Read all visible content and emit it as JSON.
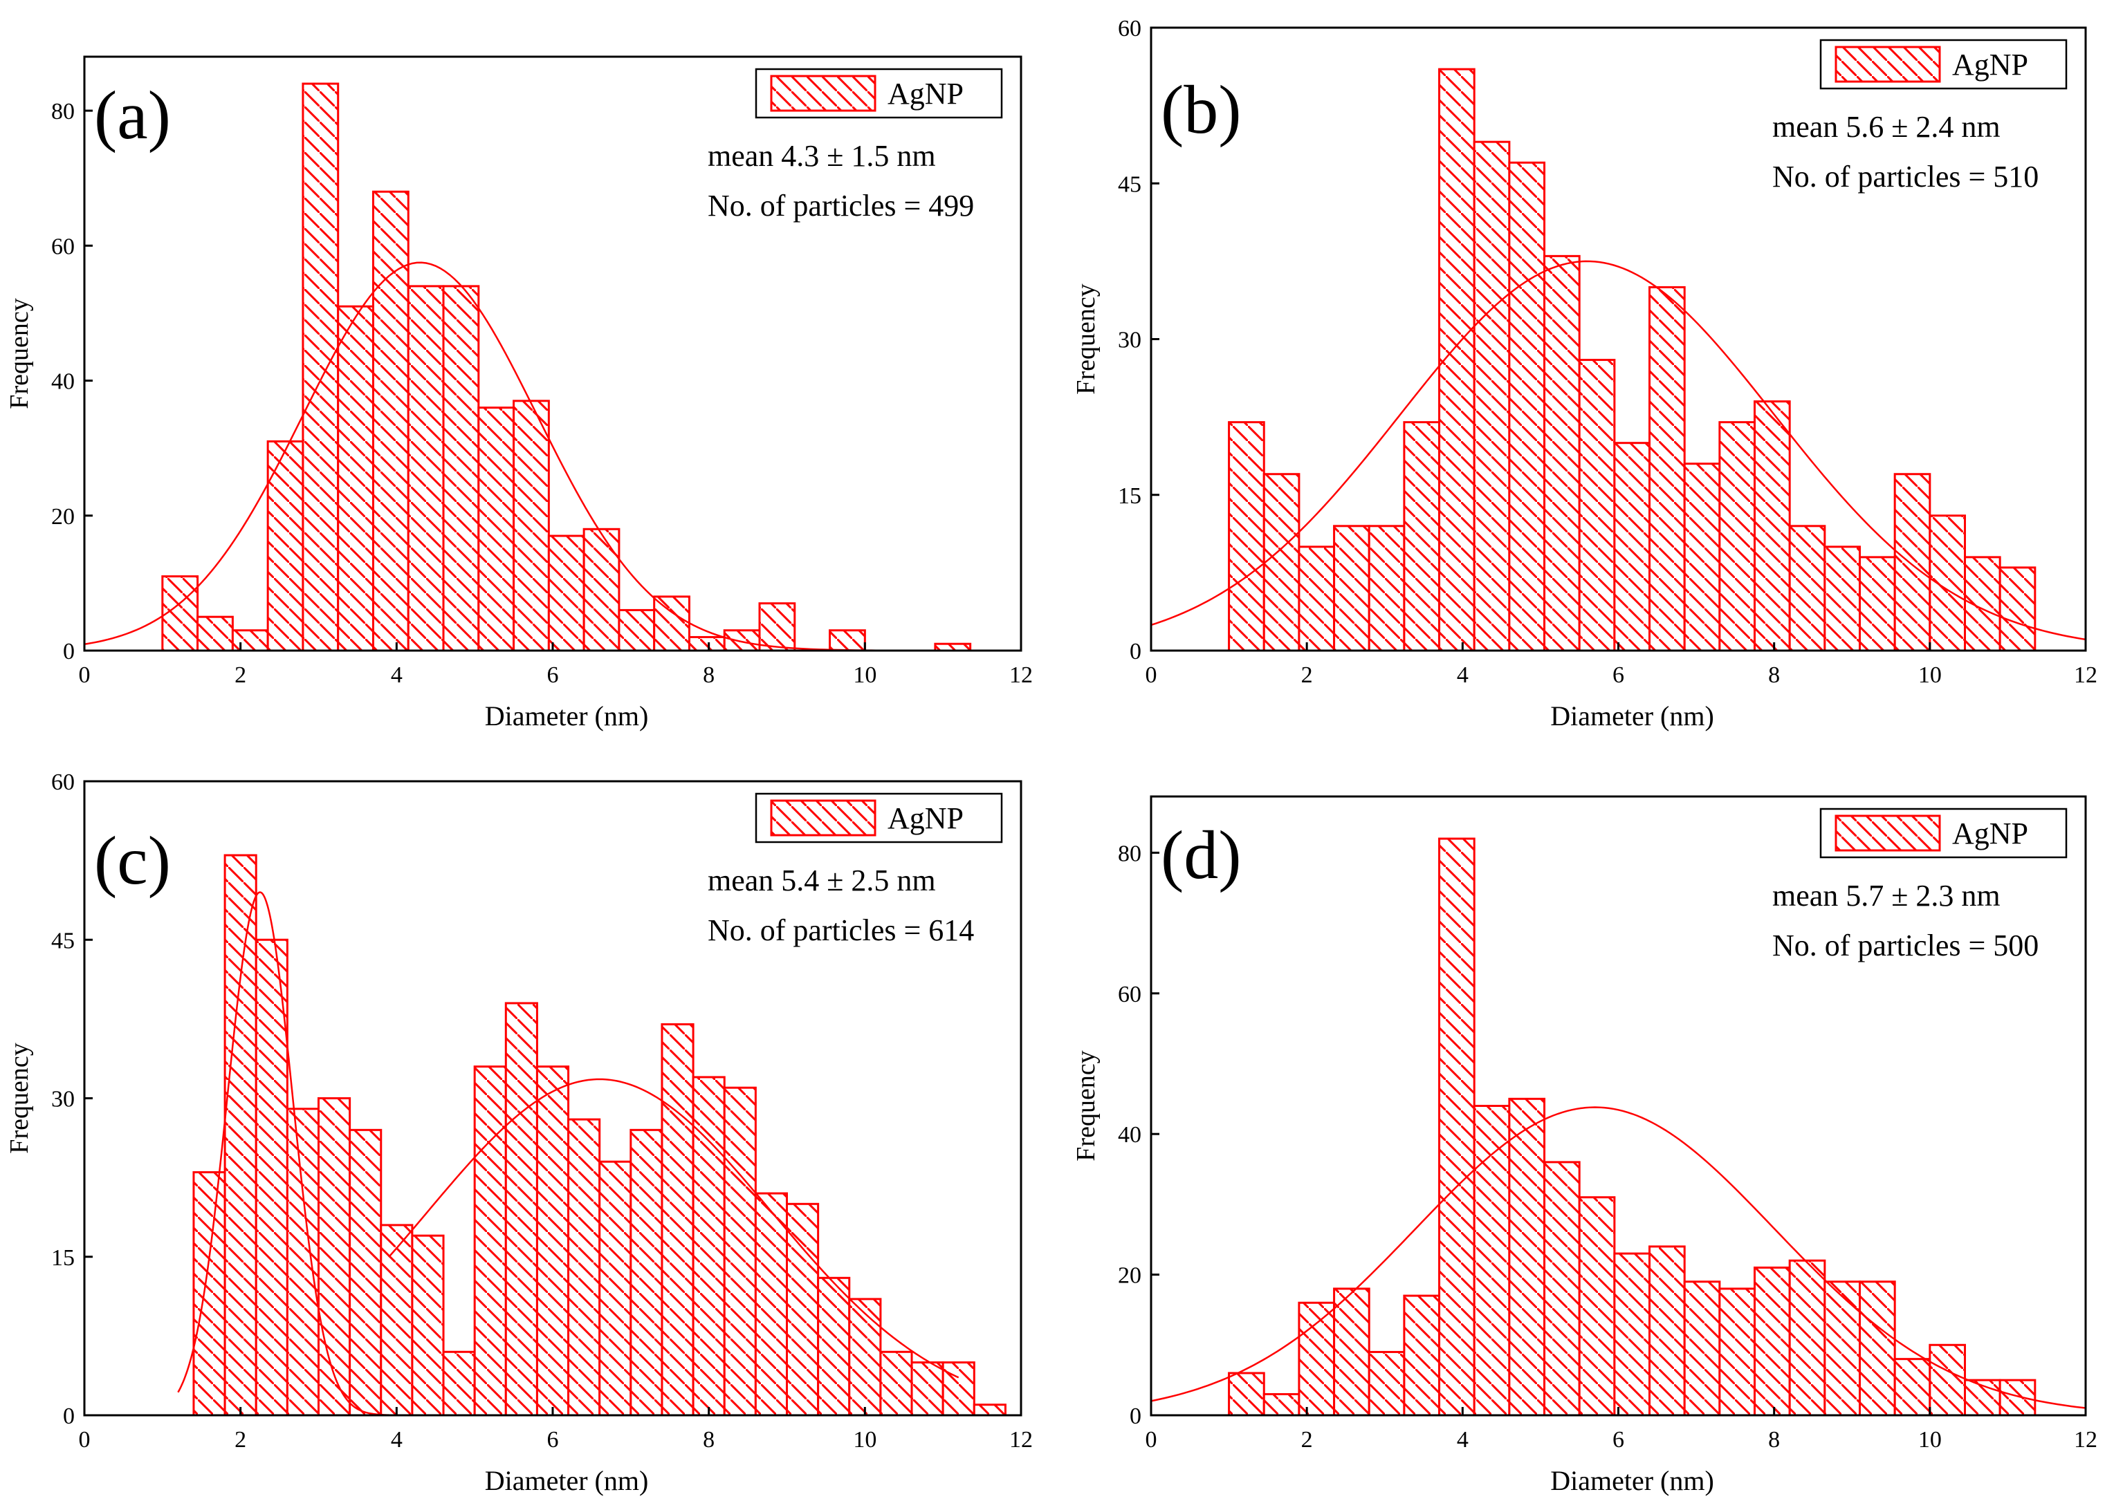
{
  "figure": {
    "bar_fill": "#ffffff",
    "bar_color": "#ff0000",
    "fit_color": "#ff0000"
  },
  "chart_data": [
    {
      "type": "bar",
      "panel_label": "(a)",
      "xlabel": "Diameter (nm)",
      "ylabel": "Frequency",
      "xlim": [
        0,
        12
      ],
      "ylim": [
        0,
        88
      ],
      "xticks": [
        0,
        2,
        4,
        6,
        8,
        10,
        12
      ],
      "yticks": [
        0,
        20,
        40,
        60,
        80
      ],
      "legend": {
        "label": "AgNP",
        "position": "top-right"
      },
      "annotations": [
        "mean 4.3 ± 1.5 nm",
        "No. of particles = 499"
      ],
      "bin_width": 0.45,
      "bins": [
        {
          "x": 1.0,
          "count": 11
        },
        {
          "x": 1.45,
          "count": 5
        },
        {
          "x": 1.9,
          "count": 3
        },
        {
          "x": 2.35,
          "count": 31
        },
        {
          "x": 2.8,
          "count": 84
        },
        {
          "x": 3.25,
          "count": 51
        },
        {
          "x": 3.7,
          "count": 68
        },
        {
          "x": 4.15,
          "count": 54
        },
        {
          "x": 4.6,
          "count": 54
        },
        {
          "x": 5.05,
          "count": 36
        },
        {
          "x": 5.5,
          "count": 37
        },
        {
          "x": 5.95,
          "count": 17
        },
        {
          "x": 6.4,
          "count": 18
        },
        {
          "x": 6.85,
          "count": 6
        },
        {
          "x": 7.3,
          "count": 8
        },
        {
          "x": 7.75,
          "count": 2
        },
        {
          "x": 8.2,
          "count": 3
        },
        {
          "x": 8.65,
          "count": 7
        },
        {
          "x": 9.55,
          "count": 3
        },
        {
          "x": 10.9,
          "count": 1
        }
      ],
      "fit": [
        {
          "mean": 4.3,
          "sd": 1.5,
          "peak": 57.5
        }
      ]
    },
    {
      "type": "bar",
      "panel_label": "(b)",
      "xlabel": "Diameter (nm)",
      "ylabel": "Frequency",
      "xlim": [
        0,
        12
      ],
      "ylim": [
        0,
        60
      ],
      "xticks": [
        0,
        2,
        4,
        6,
        8,
        10,
        12
      ],
      "yticks": [
        0,
        15,
        30,
        45,
        60
      ],
      "legend": {
        "label": "AgNP",
        "position": "top-right"
      },
      "annotations": [
        "mean 5.6 ± 2.4 nm",
        "No. of particles = 510"
      ],
      "bin_width": 0.45,
      "bins": [
        {
          "x": 1.0,
          "count": 22
        },
        {
          "x": 1.45,
          "count": 17
        },
        {
          "x": 1.9,
          "count": 10
        },
        {
          "x": 2.35,
          "count": 12
        },
        {
          "x": 2.8,
          "count": 12
        },
        {
          "x": 3.25,
          "count": 22
        },
        {
          "x": 3.7,
          "count": 56
        },
        {
          "x": 4.15,
          "count": 49
        },
        {
          "x": 4.6,
          "count": 47
        },
        {
          "x": 5.05,
          "count": 38
        },
        {
          "x": 5.5,
          "count": 28
        },
        {
          "x": 5.95,
          "count": 20
        },
        {
          "x": 6.4,
          "count": 35
        },
        {
          "x": 6.85,
          "count": 18
        },
        {
          "x": 7.3,
          "count": 22
        },
        {
          "x": 7.75,
          "count": 24
        },
        {
          "x": 8.2,
          "count": 12
        },
        {
          "x": 8.65,
          "count": 10
        },
        {
          "x": 9.1,
          "count": 9
        },
        {
          "x": 9.55,
          "count": 17
        },
        {
          "x": 10.0,
          "count": 13
        },
        {
          "x": 10.45,
          "count": 9
        },
        {
          "x": 10.9,
          "count": 8
        }
      ],
      "fit": [
        {
          "mean": 5.6,
          "sd": 2.4,
          "peak": 37.5
        }
      ]
    },
    {
      "type": "bar",
      "panel_label": "(c)",
      "xlabel": "Diameter (nm)",
      "ylabel": "Frequency",
      "xlim": [
        0,
        12
      ],
      "ylim": [
        0,
        60
      ],
      "xticks": [
        0,
        2,
        4,
        6,
        8,
        10,
        12
      ],
      "yticks": [
        0,
        15,
        30,
        45,
        60
      ],
      "legend": {
        "label": "AgNP",
        "position": "top-right"
      },
      "annotations": [
        "mean 5.4 ± 2.5 nm",
        "No. of particles = 614"
      ],
      "bin_width": 0.4,
      "bins": [
        {
          "x": 1.4,
          "count": 23
        },
        {
          "x": 1.8,
          "count": 53
        },
        {
          "x": 2.2,
          "count": 45
        },
        {
          "x": 2.6,
          "count": 29
        },
        {
          "x": 3.0,
          "count": 30
        },
        {
          "x": 3.4,
          "count": 27
        },
        {
          "x": 3.8,
          "count": 18
        },
        {
          "x": 4.2,
          "count": 17
        },
        {
          "x": 4.6,
          "count": 6
        },
        {
          "x": 5.0,
          "count": 33
        },
        {
          "x": 5.4,
          "count": 39
        },
        {
          "x": 5.8,
          "count": 33
        },
        {
          "x": 6.2,
          "count": 28
        },
        {
          "x": 6.6,
          "count": 24
        },
        {
          "x": 7.0,
          "count": 27
        },
        {
          "x": 7.4,
          "count": 37
        },
        {
          "x": 7.8,
          "count": 32
        },
        {
          "x": 8.2,
          "count": 31
        },
        {
          "x": 8.6,
          "count": 21
        },
        {
          "x": 9.0,
          "count": 20
        },
        {
          "x": 9.4,
          "count": 13
        },
        {
          "x": 9.8,
          "count": 11
        },
        {
          "x": 10.2,
          "count": 6
        },
        {
          "x": 10.6,
          "count": 5
        },
        {
          "x": 11.0,
          "count": 5
        },
        {
          "x": 11.4,
          "count": 1
        }
      ],
      "fit": [
        {
          "mean": 2.25,
          "sd": 0.42,
          "peak": 49.5,
          "x_start": 1.2,
          "x_end": 3.9
        },
        {
          "mean": 6.6,
          "sd": 2.2,
          "peak": 31.8,
          "x_start": 3.9,
          "x_end": 11.2
        }
      ]
    },
    {
      "type": "bar",
      "panel_label": "(d)",
      "xlabel": "Diameter (nm)",
      "ylabel": "Frequency",
      "xlim": [
        0,
        12
      ],
      "ylim": [
        0,
        88
      ],
      "xticks": [
        0,
        2,
        4,
        6,
        8,
        10,
        12
      ],
      "yticks": [
        0,
        20,
        40,
        60,
        80
      ],
      "legend": {
        "label": "AgNP",
        "position": "top-right"
      },
      "annotations": [
        "mean 5.7 ± 2.3 nm",
        "No. of particles = 500"
      ],
      "bin_width": 0.45,
      "bins": [
        {
          "x": 1.0,
          "count": 6
        },
        {
          "x": 1.45,
          "count": 3
        },
        {
          "x": 1.9,
          "count": 16
        },
        {
          "x": 2.35,
          "count": 18
        },
        {
          "x": 2.8,
          "count": 9
        },
        {
          "x": 3.25,
          "count": 17
        },
        {
          "x": 3.7,
          "count": 82
        },
        {
          "x": 4.15,
          "count": 44
        },
        {
          "x": 4.6,
          "count": 45
        },
        {
          "x": 5.05,
          "count": 36
        },
        {
          "x": 5.5,
          "count": 31
        },
        {
          "x": 5.95,
          "count": 23
        },
        {
          "x": 6.4,
          "count": 24
        },
        {
          "x": 6.85,
          "count": 19
        },
        {
          "x": 7.3,
          "count": 18
        },
        {
          "x": 7.75,
          "count": 21
        },
        {
          "x": 8.2,
          "count": 22
        },
        {
          "x": 8.65,
          "count": 19
        },
        {
          "x": 9.1,
          "count": 19
        },
        {
          "x": 9.55,
          "count": 8
        },
        {
          "x": 10.0,
          "count": 10
        },
        {
          "x": 10.45,
          "count": 5
        },
        {
          "x": 10.9,
          "count": 5
        }
      ],
      "fit": [
        {
          "mean": 5.7,
          "sd": 2.3,
          "peak": 43.8
        }
      ]
    }
  ]
}
